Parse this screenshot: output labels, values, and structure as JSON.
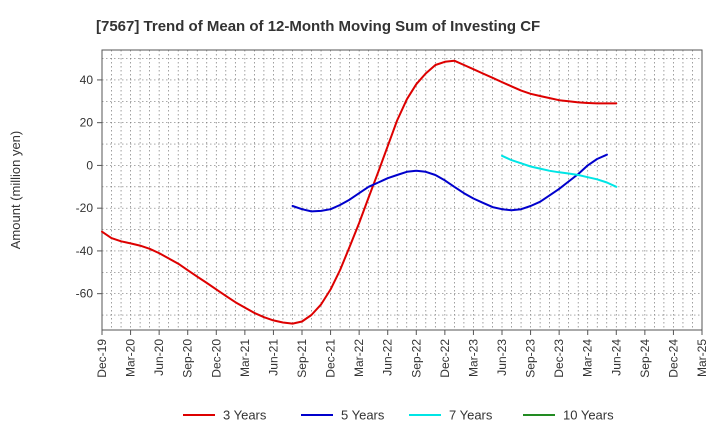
{
  "chart_data": {
    "type": "line",
    "title": "[7567]  Trend of Mean of 12-Month Moving Sum of Investing CF",
    "xlabel": "",
    "ylabel": "Amount (million yen)",
    "ylim": [
      -77,
      54
    ],
    "xlim": [
      0,
      21
    ],
    "yticks": [
      40,
      20,
      0,
      -20,
      -40,
      -60
    ],
    "xtick_labels": [
      "Dec-19",
      "Mar-20",
      "Jun-20",
      "Sep-20",
      "Dec-20",
      "Mar-21",
      "Jun-21",
      "Sep-21",
      "Dec-21",
      "Mar-22",
      "Jun-22",
      "Sep-22",
      "Dec-22",
      "Mar-23",
      "Jun-23",
      "Sep-23",
      "Dec-23",
      "Mar-24",
      "Jun-24",
      "Sep-24",
      "Dec-24",
      "Mar-25"
    ],
    "grid": true,
    "legend_position": "bottom",
    "series": [
      {
        "name": "3 Years",
        "color": "#dd0000",
        "points": [
          [
            0,
            -31
          ],
          [
            0.33,
            -34
          ],
          [
            0.67,
            -35.5
          ],
          [
            1,
            -36.5
          ],
          [
            1.33,
            -37.5
          ],
          [
            1.67,
            -39
          ],
          [
            2,
            -41
          ],
          [
            2.33,
            -43.5
          ],
          [
            2.67,
            -46
          ],
          [
            3,
            -49
          ],
          [
            3.33,
            -52
          ],
          [
            3.67,
            -55
          ],
          [
            4,
            -58
          ],
          [
            4.33,
            -61
          ],
          [
            4.67,
            -64
          ],
          [
            5,
            -66.5
          ],
          [
            5.33,
            -69
          ],
          [
            5.67,
            -71
          ],
          [
            6,
            -72.5
          ],
          [
            6.33,
            -73.5
          ],
          [
            6.67,
            -74
          ],
          [
            7,
            -73
          ],
          [
            7.33,
            -70
          ],
          [
            7.67,
            -65
          ],
          [
            8,
            -58
          ],
          [
            8.33,
            -49
          ],
          [
            8.67,
            -38
          ],
          [
            9,
            -27
          ],
          [
            9.33,
            -15
          ],
          [
            9.67,
            -3
          ],
          [
            10,
            9
          ],
          [
            10.33,
            21
          ],
          [
            10.67,
            31
          ],
          [
            11,
            38
          ],
          [
            11.33,
            43
          ],
          [
            11.67,
            47
          ],
          [
            12,
            48.5
          ],
          [
            12.33,
            49
          ],
          [
            12.67,
            47
          ],
          [
            13,
            45
          ],
          [
            13.33,
            43
          ],
          [
            13.67,
            41
          ],
          [
            14,
            39
          ],
          [
            14.33,
            37
          ],
          [
            14.67,
            35
          ],
          [
            15,
            33.5
          ],
          [
            15.33,
            32.5
          ],
          [
            15.67,
            31.5
          ],
          [
            16,
            30.5
          ],
          [
            16.33,
            30
          ],
          [
            16.67,
            29.5
          ],
          [
            17,
            29.2
          ],
          [
            17.33,
            29
          ],
          [
            17.67,
            29
          ],
          [
            18,
            29
          ]
        ]
      },
      {
        "name": "5 Years",
        "color": "#0000cc",
        "points": [
          [
            6.67,
            -19
          ],
          [
            7,
            -20.5
          ],
          [
            7.33,
            -21.5
          ],
          [
            7.67,
            -21.3
          ],
          [
            8,
            -20.5
          ],
          [
            8.33,
            -18.5
          ],
          [
            8.67,
            -16
          ],
          [
            9,
            -13
          ],
          [
            9.33,
            -10
          ],
          [
            9.67,
            -8
          ],
          [
            10,
            -6
          ],
          [
            10.33,
            -4.5
          ],
          [
            10.67,
            -3
          ],
          [
            11,
            -2.5
          ],
          [
            11.33,
            -3
          ],
          [
            11.67,
            -4.5
          ],
          [
            12,
            -7
          ],
          [
            12.33,
            -10
          ],
          [
            12.67,
            -13
          ],
          [
            13,
            -15.5
          ],
          [
            13.33,
            -17.5
          ],
          [
            13.67,
            -19.5
          ],
          [
            14,
            -20.5
          ],
          [
            14.33,
            -21
          ],
          [
            14.67,
            -20.5
          ],
          [
            15,
            -19
          ],
          [
            15.33,
            -17
          ],
          [
            15.67,
            -14
          ],
          [
            16,
            -11
          ],
          [
            16.33,
            -7.5
          ],
          [
            16.67,
            -4
          ],
          [
            17,
            0
          ],
          [
            17.33,
            3
          ],
          [
            17.67,
            5
          ]
        ]
      },
      {
        "name": "7 Years",
        "color": "#00e5e5",
        "points": [
          [
            14,
            4.5
          ],
          [
            14.33,
            2.5
          ],
          [
            14.67,
            1
          ],
          [
            15,
            -0.5
          ],
          [
            15.33,
            -1.5
          ],
          [
            15.67,
            -2.5
          ],
          [
            16,
            -3.2
          ],
          [
            16.33,
            -3.8
          ],
          [
            16.67,
            -4.5
          ],
          [
            17,
            -5.5
          ],
          [
            17.33,
            -6.5
          ],
          [
            17.67,
            -8
          ],
          [
            18,
            -10
          ]
        ]
      },
      {
        "name": "10 Years",
        "color": "#228b22",
        "points": []
      }
    ]
  }
}
